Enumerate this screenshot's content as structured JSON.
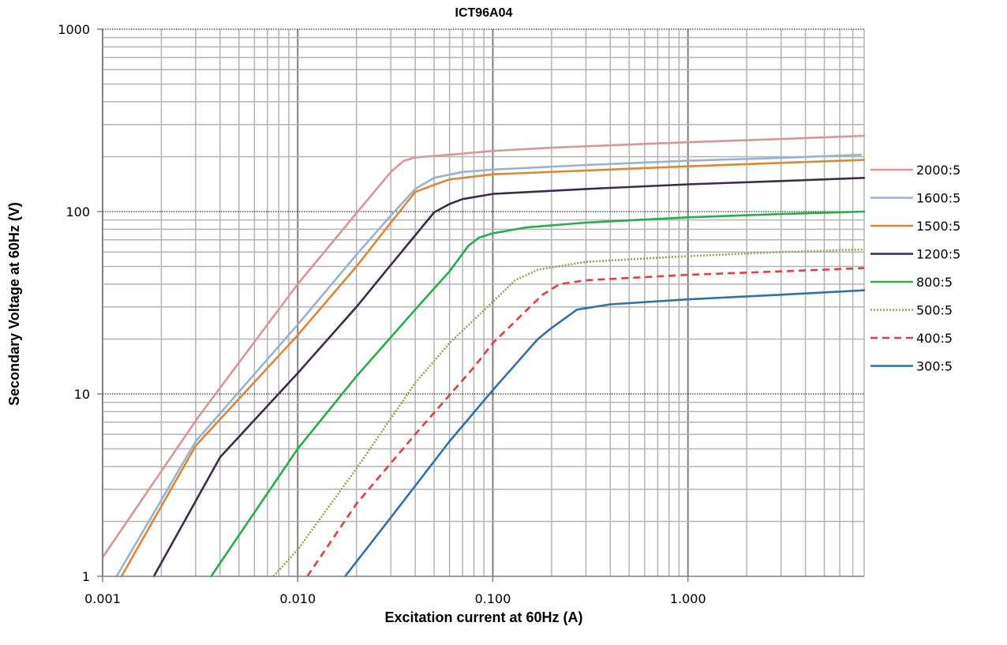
{
  "chart_data": {
    "type": "line",
    "title": "ICT96A04",
    "xlabel": "Excitation current at 60Hz (A)",
    "ylabel": "Secondary Voltage at 60Hz (V)",
    "xscale": "log",
    "yscale": "log",
    "xlim": [
      0.001,
      8
    ],
    "ylim": [
      1,
      1000
    ],
    "x_ticks": [
      0.001,
      0.01,
      0.1,
      1
    ],
    "x_tick_labels": [
      "0.001",
      "0.010",
      "0.100",
      "1.000"
    ],
    "y_ticks": [
      1,
      10,
      100,
      1000
    ],
    "y_tick_labels": [
      "1",
      "10",
      "100",
      "1000"
    ],
    "grid": true,
    "legend_position": "right",
    "series": [
      {
        "name": "2000:5",
        "color": "#d99694",
        "dash": "solid",
        "points": [
          [
            0.001,
            1.27
          ],
          [
            0.0031,
            7.5
          ],
          [
            0.01,
            40
          ],
          [
            0.02,
            98
          ],
          [
            0.03,
            165
          ],
          [
            0.035,
            190
          ],
          [
            0.04,
            198
          ],
          [
            0.06,
            205
          ],
          [
            0.1,
            215
          ],
          [
            0.2,
            224
          ],
          [
            0.5,
            233
          ],
          [
            1.0,
            240
          ],
          [
            3.0,
            250
          ],
          [
            8.0,
            260
          ]
        ]
      },
      {
        "name": "1600:5",
        "color": "#95b3d7",
        "dash": "solid",
        "points": [
          [
            0.00118,
            1.0
          ],
          [
            0.003,
            5.5
          ],
          [
            0.01,
            24
          ],
          [
            0.02,
            58
          ],
          [
            0.03,
            95
          ],
          [
            0.04,
            133
          ],
          [
            0.05,
            153
          ],
          [
            0.07,
            165
          ],
          [
            0.1,
            170
          ],
          [
            0.3,
            180
          ],
          [
            1.0,
            190
          ],
          [
            3.0,
            197
          ],
          [
            7.7,
            205
          ]
        ]
      },
      {
        "name": "1500:5",
        "color": "#e3852e",
        "dash": "solid",
        "points": [
          [
            0.00125,
            1.0
          ],
          [
            0.003,
            5.2
          ],
          [
            0.01,
            21
          ],
          [
            0.02,
            50
          ],
          [
            0.03,
            87
          ],
          [
            0.04,
            128
          ],
          [
            0.05,
            140
          ],
          [
            0.06,
            150
          ],
          [
            0.1,
            160
          ],
          [
            0.3,
            168
          ],
          [
            1.0,
            177
          ],
          [
            3.0,
            185
          ],
          [
            8.0,
            192
          ]
        ]
      },
      {
        "name": "1200:5",
        "color": "#3e2a4a",
        "dash": "solid",
        "points": [
          [
            0.00183,
            1.0
          ],
          [
            0.004,
            4.5
          ],
          [
            0.01,
            13
          ],
          [
            0.02,
            30
          ],
          [
            0.03,
            51
          ],
          [
            0.05,
            99
          ],
          [
            0.06,
            110
          ],
          [
            0.07,
            117
          ],
          [
            0.1,
            125
          ],
          [
            0.3,
            133
          ],
          [
            1.0,
            141
          ],
          [
            3.0,
            147
          ],
          [
            8.0,
            153
          ]
        ]
      },
      {
        "name": "800:5",
        "color": "#22b04a",
        "dash": "solid",
        "points": [
          [
            0.0036,
            1.0
          ],
          [
            0.01,
            5.0
          ],
          [
            0.02,
            12.5
          ],
          [
            0.04,
            29
          ],
          [
            0.06,
            47
          ],
          [
            0.075,
            65
          ],
          [
            0.085,
            72
          ],
          [
            0.1,
            76
          ],
          [
            0.15,
            82
          ],
          [
            0.3,
            87
          ],
          [
            1.0,
            93
          ],
          [
            3.0,
            97
          ],
          [
            8.0,
            100
          ]
        ]
      },
      {
        "name": "500:5",
        "color": "#8fa84e",
        "dash": "dotted",
        "points": [
          [
            0.0075,
            1.0
          ],
          [
            0.01,
            1.4
          ],
          [
            0.02,
            3.9
          ],
          [
            0.04,
            11.5
          ],
          [
            0.06,
            19
          ],
          [
            0.1,
            32
          ],
          [
            0.13,
            42
          ],
          [
            0.17,
            48
          ],
          [
            0.3,
            53
          ],
          [
            1.0,
            57
          ],
          [
            3.0,
            60
          ],
          [
            8.0,
            62
          ]
        ]
      },
      {
        "name": "400:5",
        "color": "#ee3a3a",
        "dash": "dashed",
        "points": [
          [
            0.0112,
            1.0
          ],
          [
            0.02,
            2.5
          ],
          [
            0.04,
            6.0
          ],
          [
            0.08,
            14
          ],
          [
            0.1,
            19
          ],
          [
            0.15,
            29
          ],
          [
            0.18,
            35
          ],
          [
            0.22,
            40
          ],
          [
            0.3,
            42
          ],
          [
            1.0,
            45
          ],
          [
            3.0,
            47
          ],
          [
            8.0,
            49
          ]
        ]
      },
      {
        "name": "300:5",
        "color": "#2f72b0",
        "dash": "solid",
        "points": [
          [
            0.0175,
            1.0
          ],
          [
            0.03,
            2.1
          ],
          [
            0.06,
            5.5
          ],
          [
            0.1,
            10.5
          ],
          [
            0.17,
            20
          ],
          [
            0.2,
            23
          ],
          [
            0.27,
            29
          ],
          [
            0.4,
            31
          ],
          [
            1.0,
            33
          ],
          [
            3.0,
            35
          ],
          [
            8.0,
            37
          ]
        ]
      }
    ]
  }
}
